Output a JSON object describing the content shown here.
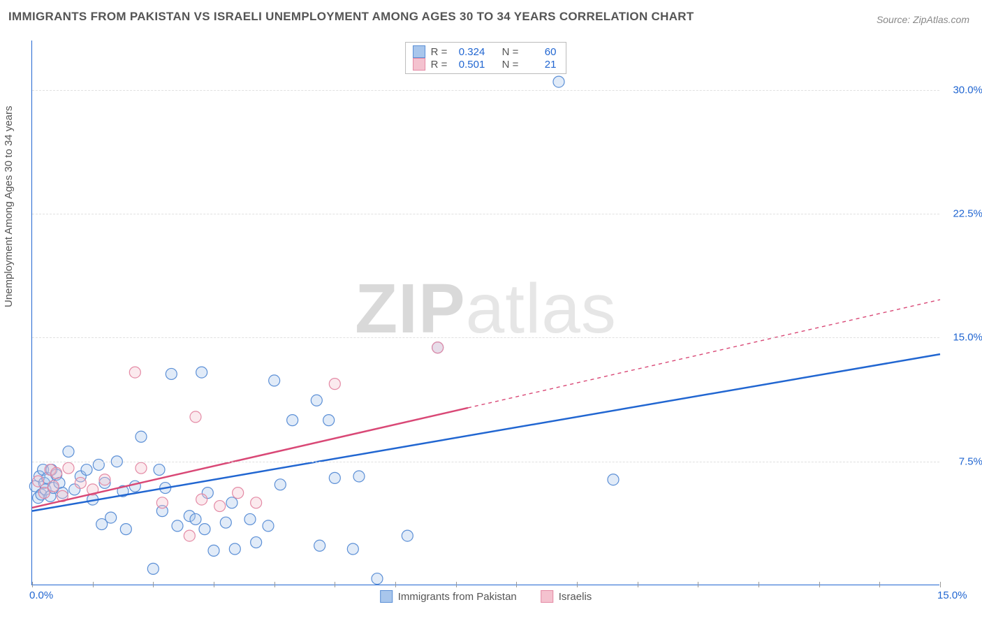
{
  "title": "IMMIGRANTS FROM PAKISTAN VS ISRAELI UNEMPLOYMENT AMONG AGES 30 TO 34 YEARS CORRELATION CHART",
  "source": "Source: ZipAtlas.com",
  "ylabel": "Unemployment Among Ages 30 to 34 years",
  "watermark": {
    "pre": "ZIP",
    "post": "atlas"
  },
  "chart": {
    "type": "scatter-with-regression",
    "background_color": "#ffffff",
    "grid_color": "#e0e0e0",
    "axis_color": "#2166d1",
    "xlim": [
      0,
      15
    ],
    "ylim": [
      0,
      33
    ],
    "x_ticks": [
      {
        "pos": 0,
        "label": "0.0%"
      },
      {
        "pos": 15,
        "label": "15.0%"
      }
    ],
    "y_ticks": [
      {
        "pos": 7.5,
        "label": "7.5%"
      },
      {
        "pos": 15,
        "label": "15.0%"
      },
      {
        "pos": 22.5,
        "label": "22.5%"
      },
      {
        "pos": 30,
        "label": "30.0%"
      }
    ],
    "x_tick_marks": [
      0,
      1,
      2,
      3,
      4,
      5,
      6,
      7,
      8,
      9,
      10,
      11,
      12,
      13,
      14,
      15
    ],
    "marker_radius": 8,
    "marker_stroke_width": 1.2,
    "marker_fill_opacity": 0.35,
    "line_width": 2.5,
    "series": [
      {
        "name": "Immigrants from Pakistan",
        "color_fill": "#a8c6ec",
        "color_stroke": "#5b8fd6",
        "line_color": "#2166d1",
        "R": "0.324",
        "N": "60",
        "trend": {
          "x1": 0,
          "y1": 4.5,
          "x2": 15,
          "y2": 14.0,
          "solid_until_x": 15
        },
        "points": [
          [
            0.05,
            6.0
          ],
          [
            0.1,
            5.3
          ],
          [
            0.12,
            6.6
          ],
          [
            0.15,
            5.5
          ],
          [
            0.18,
            7.0
          ],
          [
            0.2,
            6.2
          ],
          [
            0.22,
            5.8
          ],
          [
            0.25,
            6.5
          ],
          [
            0.3,
            5.4
          ],
          [
            0.32,
            7.0
          ],
          [
            0.35,
            5.9
          ],
          [
            0.4,
            6.7
          ],
          [
            0.45,
            6.2
          ],
          [
            0.5,
            5.6
          ],
          [
            0.6,
            8.1
          ],
          [
            0.7,
            5.8
          ],
          [
            0.8,
            6.6
          ],
          [
            0.9,
            7.0
          ],
          [
            1.0,
            5.2
          ],
          [
            1.1,
            7.3
          ],
          [
            1.15,
            3.7
          ],
          [
            1.2,
            6.2
          ],
          [
            1.3,
            4.1
          ],
          [
            1.4,
            7.5
          ],
          [
            1.5,
            5.7
          ],
          [
            1.55,
            3.4
          ],
          [
            1.7,
            6.0
          ],
          [
            1.8,
            9.0
          ],
          [
            2.0,
            1.0
          ],
          [
            2.1,
            7.0
          ],
          [
            2.15,
            4.5
          ],
          [
            2.2,
            5.9
          ],
          [
            2.3,
            12.8
          ],
          [
            2.4,
            3.6
          ],
          [
            2.6,
            4.2
          ],
          [
            2.7,
            4.0
          ],
          [
            2.8,
            12.9
          ],
          [
            2.85,
            3.4
          ],
          [
            2.9,
            5.6
          ],
          [
            3.0,
            2.1
          ],
          [
            3.2,
            3.8
          ],
          [
            3.3,
            5.0
          ],
          [
            3.35,
            2.2
          ],
          [
            3.6,
            4.0
          ],
          [
            3.7,
            2.6
          ],
          [
            3.9,
            3.6
          ],
          [
            4.0,
            12.4
          ],
          [
            4.1,
            6.1
          ],
          [
            4.3,
            10.0
          ],
          [
            4.7,
            11.2
          ],
          [
            4.75,
            2.4
          ],
          [
            4.9,
            10.0
          ],
          [
            5.0,
            6.5
          ],
          [
            5.3,
            2.2
          ],
          [
            5.4,
            6.6
          ],
          [
            5.7,
            0.4
          ],
          [
            6.2,
            3.0
          ],
          [
            6.7,
            14.4
          ],
          [
            8.7,
            30.5
          ],
          [
            9.6,
            6.4
          ]
        ]
      },
      {
        "name": "Israelis",
        "color_fill": "#f4c2cf",
        "color_stroke": "#e48aa5",
        "line_color": "#d94876",
        "R": "0.501",
        "N": "21",
        "trend": {
          "x1": 0,
          "y1": 4.7,
          "x2": 15,
          "y2": 17.3,
          "solid_until_x": 7.2
        },
        "points": [
          [
            0.1,
            6.3
          ],
          [
            0.2,
            5.6
          ],
          [
            0.3,
            7.0
          ],
          [
            0.35,
            6.0
          ],
          [
            0.4,
            6.8
          ],
          [
            0.5,
            5.4
          ],
          [
            0.6,
            7.1
          ],
          [
            0.8,
            6.2
          ],
          [
            1.0,
            5.8
          ],
          [
            1.2,
            6.4
          ],
          [
            1.7,
            12.9
          ],
          [
            1.8,
            7.1
          ],
          [
            2.15,
            5.0
          ],
          [
            2.6,
            3.0
          ],
          [
            2.7,
            10.2
          ],
          [
            2.8,
            5.2
          ],
          [
            3.1,
            4.8
          ],
          [
            3.4,
            5.6
          ],
          [
            3.7,
            5.0
          ],
          [
            5.0,
            12.2
          ],
          [
            6.7,
            14.4
          ]
        ]
      }
    ],
    "stats_box": {
      "label_R": "R =",
      "label_N": "N ="
    },
    "legend_labels": [
      "Immigrants from Pakistan",
      "Israelis"
    ]
  }
}
